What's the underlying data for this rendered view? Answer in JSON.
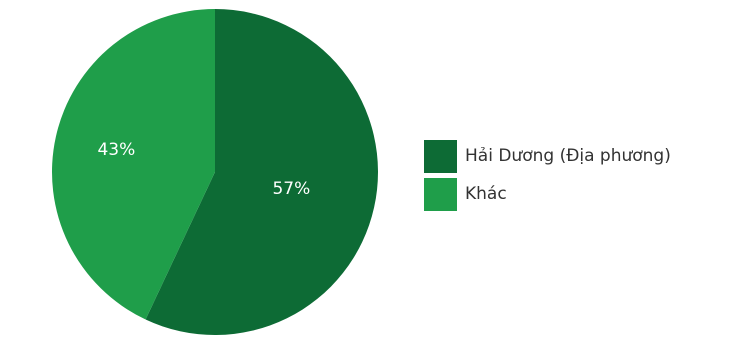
{
  "chart_data": {
    "type": "pie",
    "categories": [
      "Hải Dương (Địa phương)",
      "Khác"
    ],
    "values": [
      57,
      43
    ],
    "labels": [
      "57%",
      "43%"
    ],
    "colors": [
      "#0d6b35",
      "#1f9e4a"
    ],
    "legend_position": "right"
  },
  "legend": {
    "items": [
      {
        "label": "Hải Dương (Địa phương)",
        "color": "#0d6b35"
      },
      {
        "label": "Khác",
        "color": "#1f9e4a"
      }
    ]
  }
}
